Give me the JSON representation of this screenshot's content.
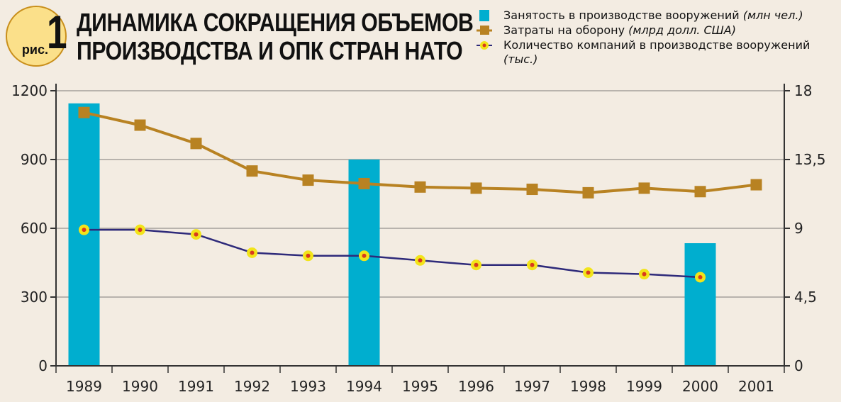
{
  "figure": {
    "badge_word": "рис.",
    "badge_number": "1"
  },
  "title_lines": [
    "ДИНАМИКА СОКРАЩЕНИЯ ОБЪЕМОВ",
    "ПРОИЗВОДСТВА И ОПК СТРАН НАТО"
  ],
  "legend": [
    {
      "label": "Занятость в производстве вооружений",
      "unit": "(млн чел.)",
      "marker": "bar-icon",
      "color": "#00aecf"
    },
    {
      "label": "Затраты на оборону",
      "unit": "(млрд долл. США)",
      "marker": "square-line-icon",
      "color": "#b88222"
    },
    {
      "label": "Количество компаний в производстве вооружений",
      "unit": "(тыс.)",
      "marker": "dot-line-icon",
      "color": "#2e2a7a"
    }
  ],
  "chart_data": {
    "type": "bar+line",
    "categories": [
      "1989",
      "1990",
      "1991",
      "1992",
      "1993",
      "1994",
      "1995",
      "1996",
      "1997",
      "1998",
      "1999",
      "2000",
      "2001"
    ],
    "left_axis": {
      "ticks": [
        "0",
        "300",
        "600",
        "900",
        "1200"
      ],
      "ylim": [
        0,
        1200
      ]
    },
    "right_axis": {
      "ticks": [
        "0",
        "4,5",
        "9",
        "13,5",
        "18"
      ],
      "ylim": [
        0,
        18
      ]
    },
    "grid": true,
    "series": [
      {
        "name": "Занятость в производстве вооружений (млн чел.)",
        "kind": "bar",
        "axis": "left",
        "color": "#00aecf",
        "values": [
          1145,
          null,
          null,
          null,
          null,
          900,
          null,
          null,
          null,
          null,
          null,
          535,
          null
        ]
      },
      {
        "name": "Затраты на оборону (млрд долл. США)",
        "kind": "line",
        "axis": "left",
        "color": "#b88222",
        "marker": "square",
        "values": [
          1105,
          1050,
          970,
          850,
          810,
          795,
          780,
          775,
          770,
          755,
          775,
          760,
          790
        ]
      },
      {
        "name": "Количество компаний в производстве вооружений (тыс.)",
        "kind": "line",
        "axis": "right",
        "color": "#2e2a7a",
        "marker": "dot",
        "marker_fill": "#f2e41a",
        "marker_center": "#d93a1e",
        "values": [
          8.9,
          8.9,
          8.6,
          7.4,
          7.2,
          7.2,
          6.9,
          6.6,
          6.6,
          6.1,
          6.0,
          5.8,
          null
        ]
      }
    ]
  }
}
